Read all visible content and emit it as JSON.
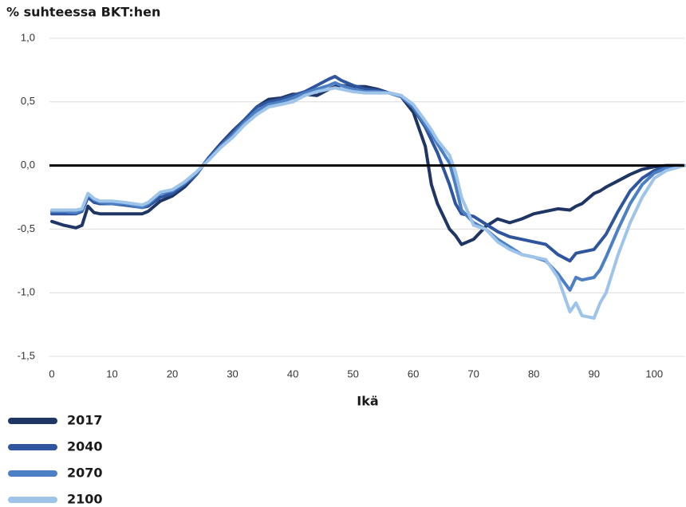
{
  "chart_data": {
    "type": "line",
    "ylabel": "% suhteessa BKT:hen",
    "xlabel": "Ikä",
    "x": [
      0,
      2,
      4,
      5,
      6,
      7,
      8,
      10,
      12,
      15,
      16,
      18,
      20,
      22,
      24,
      26,
      28,
      30,
      32,
      34,
      36,
      38,
      40,
      42,
      44,
      46,
      47,
      48,
      50,
      52,
      54,
      56,
      58,
      60,
      62,
      63,
      64,
      66,
      67,
      68,
      70,
      72,
      74,
      76,
      78,
      80,
      82,
      84,
      86,
      87,
      88,
      90,
      91,
      92,
      94,
      96,
      98,
      100,
      102,
      105
    ],
    "series": [
      {
        "name": "2017",
        "color": "#1f3564",
        "values": [
          -0.44,
          -0.47,
          -0.49,
          -0.47,
          -0.32,
          -0.37,
          -0.38,
          -0.38,
          -0.38,
          -0.38,
          -0.36,
          -0.28,
          -0.24,
          -0.17,
          -0.07,
          0.06,
          0.17,
          0.27,
          0.36,
          0.46,
          0.52,
          0.53,
          0.56,
          0.56,
          0.55,
          0.6,
          0.62,
          0.63,
          0.62,
          0.62,
          0.6,
          0.57,
          0.54,
          0.42,
          0.15,
          -0.15,
          -0.3,
          -0.5,
          -0.55,
          -0.62,
          -0.58,
          -0.48,
          -0.42,
          -0.45,
          -0.42,
          -0.38,
          -0.36,
          -0.34,
          -0.35,
          -0.32,
          -0.3,
          -0.22,
          -0.2,
          -0.17,
          -0.12,
          -0.07,
          -0.03,
          -0.01,
          0,
          0
        ]
      },
      {
        "name": "2040",
        "color": "#2f559e",
        "values": [
          -0.38,
          -0.38,
          -0.38,
          -0.36,
          -0.25,
          -0.29,
          -0.3,
          -0.3,
          -0.31,
          -0.33,
          -0.32,
          -0.25,
          -0.22,
          -0.15,
          -0.07,
          0.06,
          0.16,
          0.26,
          0.36,
          0.46,
          0.5,
          0.52,
          0.55,
          0.58,
          0.63,
          0.68,
          0.7,
          0.67,
          0.63,
          0.6,
          0.59,
          0.57,
          0.55,
          0.45,
          0.3,
          0.2,
          0.1,
          -0.15,
          -0.3,
          -0.38,
          -0.4,
          -0.46,
          -0.52,
          -0.56,
          -0.58,
          -0.6,
          -0.62,
          -0.7,
          -0.75,
          -0.69,
          -0.68,
          -0.66,
          -0.6,
          -0.54,
          -0.36,
          -0.2,
          -0.1,
          -0.04,
          -0.01,
          0
        ]
      },
      {
        "name": "2070",
        "color": "#4d7fc4",
        "values": [
          -0.36,
          -0.36,
          -0.37,
          -0.35,
          -0.23,
          -0.27,
          -0.29,
          -0.3,
          -0.3,
          -0.33,
          -0.3,
          -0.22,
          -0.2,
          -0.14,
          -0.06,
          0.05,
          0.15,
          0.24,
          0.34,
          0.43,
          0.48,
          0.5,
          0.53,
          0.57,
          0.6,
          0.63,
          0.65,
          0.63,
          0.6,
          0.58,
          0.58,
          0.57,
          0.54,
          0.46,
          0.32,
          0.25,
          0.17,
          0.02,
          -0.15,
          -0.35,
          -0.45,
          -0.5,
          -0.58,
          -0.64,
          -0.7,
          -0.72,
          -0.75,
          -0.85,
          -0.98,
          -0.88,
          -0.9,
          -0.88,
          -0.82,
          -0.72,
          -0.5,
          -0.3,
          -0.15,
          -0.06,
          -0.02,
          0
        ]
      },
      {
        "name": "2100",
        "color": "#9ec4ea",
        "values": [
          -0.35,
          -0.35,
          -0.35,
          -0.34,
          -0.22,
          -0.26,
          -0.28,
          -0.28,
          -0.29,
          -0.31,
          -0.29,
          -0.21,
          -0.19,
          -0.13,
          -0.05,
          0.04,
          0.14,
          0.22,
          0.32,
          0.4,
          0.46,
          0.48,
          0.5,
          0.55,
          0.58,
          0.6,
          0.61,
          0.6,
          0.58,
          0.57,
          0.57,
          0.57,
          0.55,
          0.48,
          0.35,
          0.28,
          0.2,
          0.08,
          -0.05,
          -0.25,
          -0.47,
          -0.5,
          -0.6,
          -0.66,
          -0.7,
          -0.72,
          -0.74,
          -0.88,
          -1.15,
          -1.08,
          -1.18,
          -1.2,
          -1.08,
          -1.0,
          -0.7,
          -0.45,
          -0.25,
          -0.1,
          -0.04,
          0
        ]
      }
    ],
    "xlim": [
      0,
      105
    ],
    "xticks": [
      0,
      10,
      20,
      30,
      40,
      50,
      60,
      70,
      80,
      90,
      100
    ],
    "ylim": [
      -1.5,
      1.0
    ],
    "yticks": [
      {
        "value": -1.5,
        "label": "-1,5"
      },
      {
        "value": -1.0,
        "label": "-1,0"
      },
      {
        "value": -0.5,
        "label": "-0,5"
      },
      {
        "value": 0,
        "label": "0,0"
      },
      {
        "value": 0.5,
        "label": "0,5"
      },
      {
        "value": 1.0,
        "label": "1,0"
      }
    ],
    "grid": true,
    "legend": "bottom-left"
  }
}
